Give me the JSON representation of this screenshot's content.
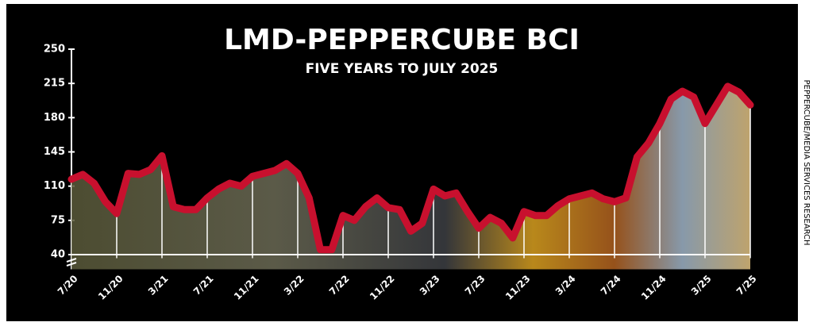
{
  "chart_data": {
    "type": "line",
    "title": "LMD-PEPPERCUBE BCI",
    "subtitle": "FIVE YEARS TO JULY 2025",
    "source": "PEPPERCUBE/MEDIA SERVICES RESEARCH",
    "categories": [
      "7/20",
      null,
      null,
      null,
      "11/20",
      null,
      null,
      null,
      "3/21",
      null,
      null,
      null,
      "7/21",
      null,
      null,
      null,
      "11/21",
      null,
      null,
      null,
      "3/22",
      null,
      null,
      null,
      "7/22",
      null,
      null,
      null,
      "11/22",
      null,
      null,
      null,
      "3/23",
      null,
      null,
      null,
      "7/23",
      null,
      null,
      null,
      "11/23",
      null,
      null,
      null,
      "3/24",
      null,
      null,
      null,
      "7/24",
      null,
      null,
      null,
      "11/24",
      null,
      null,
      null,
      "3/25",
      null,
      null,
      null,
      "7/25"
    ],
    "values": [
      117,
      122,
      113,
      94,
      82,
      123,
      122,
      127,
      141,
      89,
      86,
      86,
      98,
      107,
      113,
      110,
      120,
      123,
      126,
      133,
      123,
      98,
      45,
      45,
      80,
      75,
      89,
      98,
      88,
      86,
      64,
      72,
      107,
      100,
      103,
      84,
      67,
      78,
      72,
      57,
      84,
      80,
      80,
      90,
      97,
      100,
      103,
      97,
      94,
      98,
      140,
      154,
      174,
      199,
      207,
      201,
      174,
      193,
      212,
      206,
      193
    ],
    "color": "#c8102e",
    "ylim": [
      25,
      250
    ],
    "yticks": [
      40,
      75,
      110,
      145,
      180,
      215,
      250
    ]
  }
}
